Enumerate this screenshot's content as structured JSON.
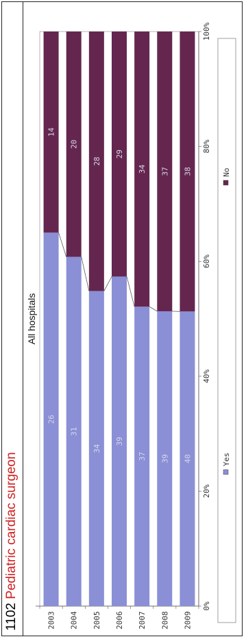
{
  "header": {
    "code": "1102",
    "title": "Pediatric cardiac surgeon"
  },
  "colors": {
    "yes": "#8a8fd6",
    "no": "#64264f",
    "label_text": "#d8d8e8"
  },
  "chart_data": {
    "type": "bar",
    "orientation": "horizontal",
    "stacked": "percent",
    "title": "All hospitals",
    "categories": [
      "2003",
      "2004",
      "2005",
      "2006",
      "2007",
      "2008",
      "2009"
    ],
    "series": [
      {
        "name": "Yes",
        "values": [
          26,
          31,
          34,
          39,
          37,
          39,
          40
        ]
      },
      {
        "name": "No",
        "values": [
          14,
          20,
          28,
          29,
          34,
          37,
          38
        ]
      }
    ],
    "xlim": [
      0,
      100
    ],
    "x_ticks": [
      "0%",
      "20%",
      "40%",
      "60%",
      "80%",
      "100%"
    ],
    "legend_position": "bottom",
    "grid": false,
    "series_lines": true
  }
}
